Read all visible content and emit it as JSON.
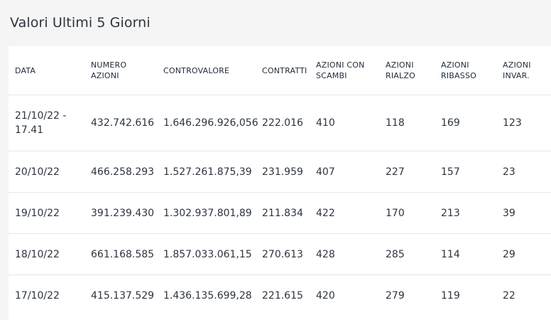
{
  "panel": {
    "title": "Valori Ultimi 5 Giorni"
  },
  "table": {
    "headers": [
      [
        "DATA"
      ],
      [
        "NUMERO",
        "AZIONI"
      ],
      [
        "CONTROVALORE"
      ],
      [
        "CONTRATTI"
      ],
      [
        "AZIONI CON",
        "SCAMBI"
      ],
      [
        "AZIONI",
        "RIALZO"
      ],
      [
        "AZIONI",
        "RIBASSO"
      ],
      [
        "AZIONI",
        "INVAR."
      ]
    ],
    "rows": [
      [
        "21/10/22 - 17.41",
        "432.742.616",
        "1.646.296.926,056",
        "222.016",
        "410",
        "118",
        "169",
        "123"
      ],
      [
        "20/10/22",
        "466.258.293",
        "1.527.261.875,39",
        "231.959",
        "407",
        "227",
        "157",
        "23"
      ],
      [
        "19/10/22",
        "391.239.430",
        "1.302.937.801,89",
        "211.834",
        "422",
        "170",
        "213",
        "39"
      ],
      [
        "18/10/22",
        "661.168.585",
        "1.857.033.061,15",
        "270.613",
        "428",
        "285",
        "114",
        "29"
      ],
      [
        "17/10/22",
        "415.137.529",
        "1.436.135.699,28",
        "221.615",
        "420",
        "279",
        "119",
        "22"
      ]
    ]
  }
}
